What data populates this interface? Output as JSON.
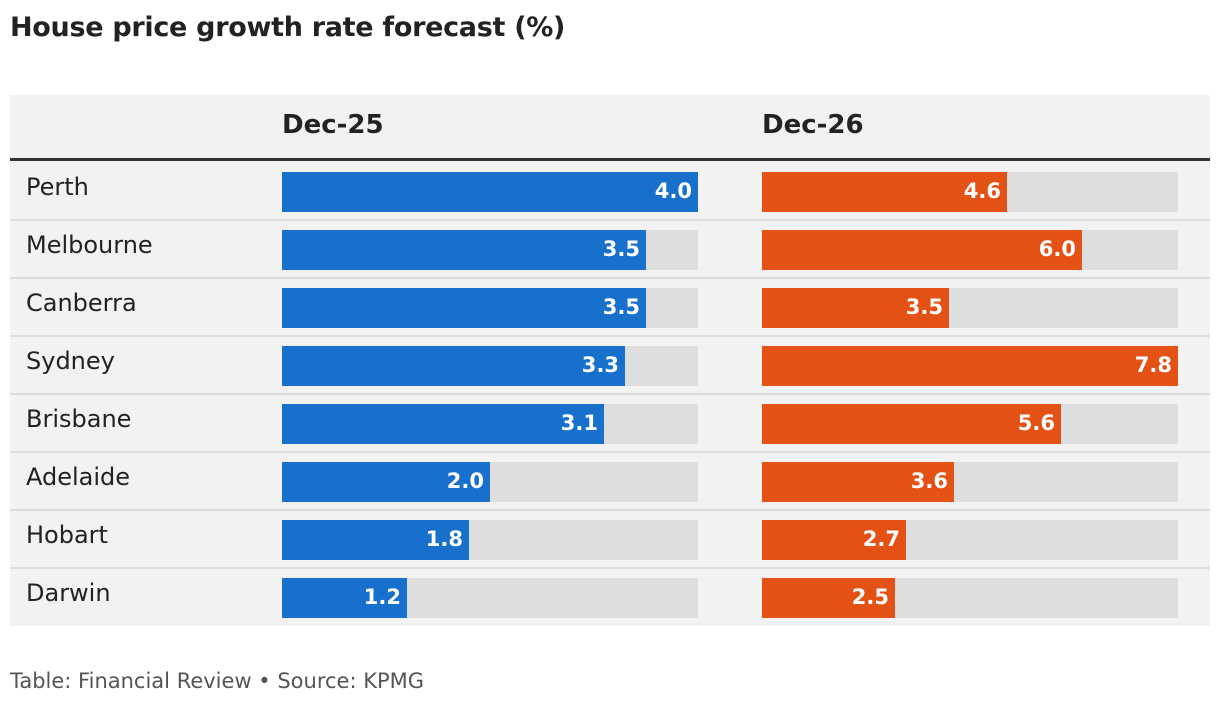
{
  "title": "House price growth rate forecast (%)",
  "footer": "Table: Financial Review • Source: KPMG",
  "colors": {
    "dec25": "#1670cc",
    "dec26": "#e35214",
    "track": "#dedede",
    "panel": "#f2f2f2"
  },
  "chart_data": {
    "type": "bar",
    "title": "House price growth rate forecast (%)",
    "categories": [
      "Perth",
      "Melbourne",
      "Canberra",
      "Sydney",
      "Brisbane",
      "Adelaide",
      "Hobart",
      "Darwin"
    ],
    "series": [
      {
        "name": "Dec-25",
        "values": [
          4.0,
          3.5,
          3.5,
          3.3,
          3.1,
          2.0,
          1.8,
          1.2
        ],
        "labels": [
          "4.0",
          "3.5",
          "3.5",
          "3.3",
          "3.1",
          "2.0",
          "1.8",
          "1.2"
        ],
        "max": 4.0,
        "color": "#1670cc"
      },
      {
        "name": "Dec-26",
        "values": [
          4.6,
          6.0,
          3.5,
          7.8,
          5.6,
          3.6,
          2.7,
          2.5
        ],
        "labels": [
          "4.6",
          "6.0",
          "3.5",
          "7.8",
          "5.6",
          "3.6",
          "2.7",
          "2.5"
        ],
        "max": 7.8,
        "color": "#e35214"
      }
    ]
  }
}
